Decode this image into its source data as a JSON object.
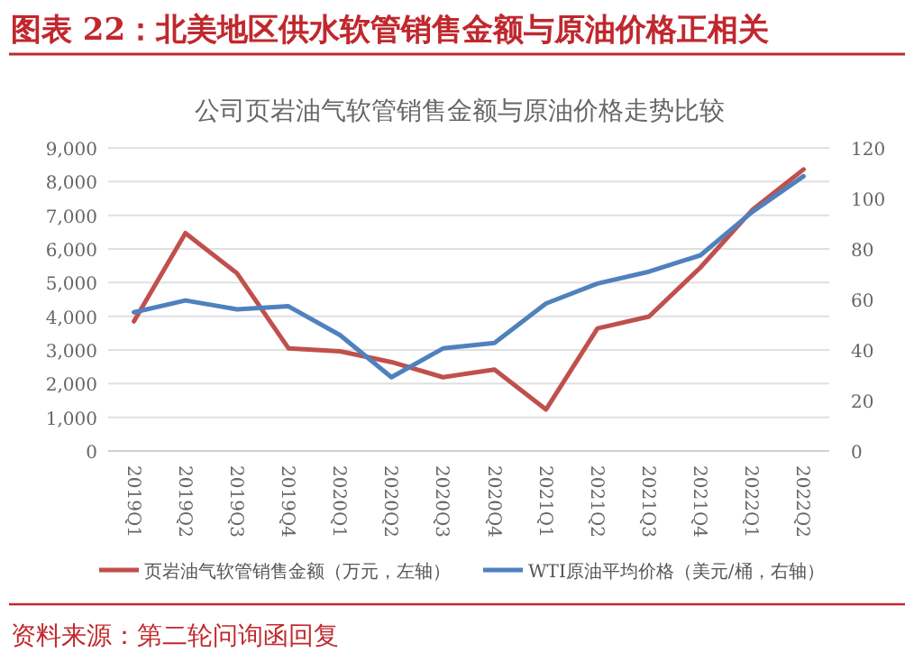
{
  "chart_data": {
    "type": "line",
    "title": "图表 22：北美地区供水软管销售金额与原油价格正相关",
    "subtitle": "公司页岩油气软管销售金额与原油价格走势比较",
    "annotations": [
      "资料来源：第二轮问询函回复"
    ],
    "categories": [
      "2019Q1",
      "2019Q2",
      "2019Q3",
      "2019Q4",
      "2020Q1",
      "2020Q2",
      "2020Q3",
      "2020Q4",
      "2021Q1",
      "2021Q2",
      "2021Q3",
      "2021Q4",
      "2022Q1",
      "2022Q2"
    ],
    "series": [
      {
        "name": "页岩油气软管销售金额（万元，左轴）",
        "color": "#c0504d",
        "values": [
          3850,
          6470,
          5280,
          3050,
          2960,
          2640,
          2190,
          2420,
          1230,
          3640,
          3990,
          5450,
          7150,
          8360
        ]
      },
      {
        "name": "WTI原油平均价格（美元/桶，右轴）",
        "color": "#4f81bd",
        "axis": "y2",
        "values": [
          54.9,
          59.6,
          56.1,
          57.3,
          45.9,
          29.2,
          40.6,
          42.8,
          58.4,
          66.3,
          71.0,
          77.5,
          94.6,
          108.8
        ]
      }
    ],
    "ylim": [
      0,
      9000
    ],
    "yticks": [
      {
        "value": 0,
        "label": "0"
      },
      {
        "value": 1000,
        "label": "1,000"
      },
      {
        "value": 2000,
        "label": "2,000"
      },
      {
        "value": 3000,
        "label": "3,000"
      },
      {
        "value": 4000,
        "label": "4,000"
      },
      {
        "value": 5000,
        "label": "5,000"
      },
      {
        "value": 6000,
        "label": "6,000"
      },
      {
        "value": 7000,
        "label": "7,000"
      },
      {
        "value": 8000,
        "label": "8,000"
      },
      {
        "value": 9000,
        "label": "9,000"
      }
    ],
    "y2lim": [
      0,
      120
    ],
    "y2ticks": [
      0,
      20,
      40,
      60,
      80,
      100,
      120
    ],
    "grid": "y",
    "legend": "bottom"
  }
}
